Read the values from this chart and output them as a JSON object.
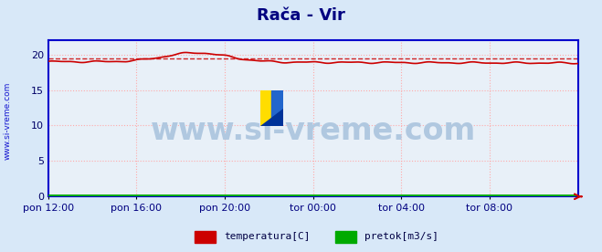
{
  "title": "Rača - Vir",
  "title_color": "#000080",
  "title_fontsize": 13,
  "bg_color": "#d8e8f8",
  "plot_bg_color": "#e8f0f8",
  "x_labels": [
    "pon 12:00",
    "pon 16:00",
    "pon 20:00",
    "tor 00:00",
    "tor 04:00",
    "tor 08:00"
  ],
  "ylim": [
    0,
    22
  ],
  "yticks": [
    0,
    5,
    10,
    15,
    20
  ],
  "grid_color": "#ffaaaa",
  "grid_style": ":",
  "axis_color": "#0000cc",
  "watermark_text": "www.si-vreme.com",
  "watermark_color": "#b0c8e0",
  "watermark_fontsize": 24,
  "legend_items": [
    {
      "label": "temperatura[C]",
      "color": "#cc0000"
    },
    {
      "label": "pretok[m3/s]",
      "color": "#00aa00"
    }
  ],
  "avg_line": 19.5,
  "n_points": 288
}
